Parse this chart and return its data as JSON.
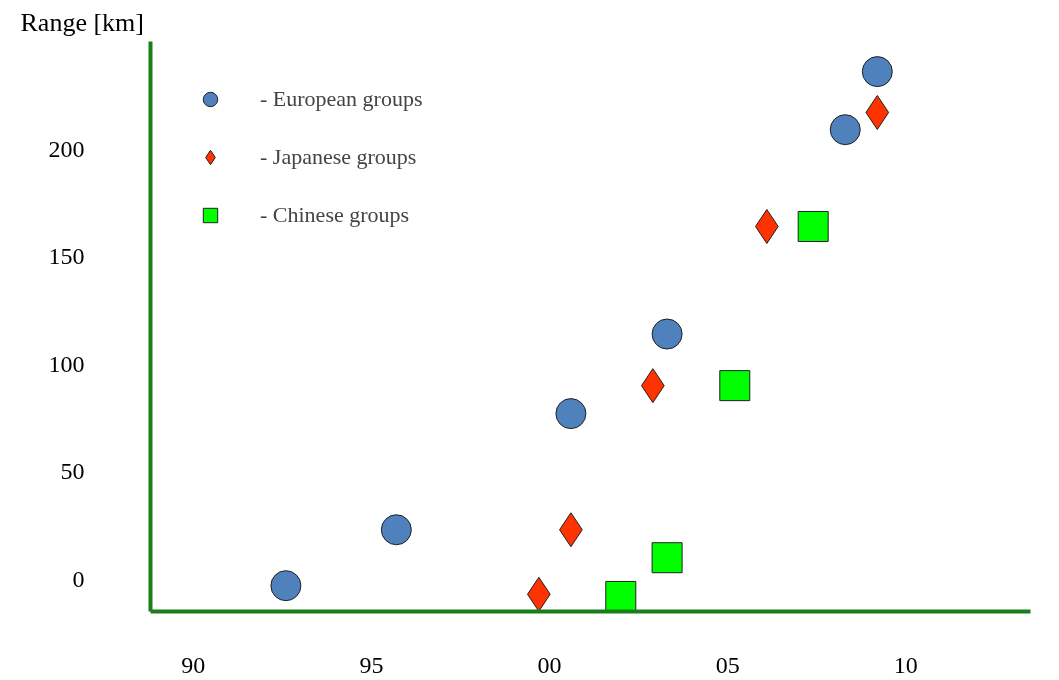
{
  "chart_data": {
    "type": "scatter",
    "ylabel": "Range [km]",
    "xlim": [
      1988.8,
      2013.5
    ],
    "ylim": [
      -15,
      250
    ],
    "xticks": [
      {
        "value": 1990,
        "label": "90"
      },
      {
        "value": 1995,
        "label": "95"
      },
      {
        "value": 2000,
        "label": "00"
      },
      {
        "value": 2005,
        "label": "05"
      },
      {
        "value": 2010,
        "label": "10"
      }
    ],
    "yticks": [
      0,
      50,
      100,
      150,
      200
    ],
    "grid": false,
    "legend": "top left",
    "series": [
      {
        "name": "- European groups",
        "color": "#4f81bd",
        "marker": "circle",
        "x": [
          1992.6,
          1995.7,
          2000.6,
          2003.3,
          2008.3,
          2009.2
        ],
        "values": [
          -3,
          23,
          77,
          114,
          209,
          236
        ]
      },
      {
        "name": "- Japanese groups",
        "color": "#ff3300",
        "marker": "diamond",
        "x": [
          1999.7,
          2000.6,
          2002.9,
          2006.1,
          2009.2
        ],
        "values": [
          -7,
          23,
          90,
          164,
          217
        ]
      },
      {
        "name": "- Chinese groups",
        "color": "#00ff00",
        "marker": "square",
        "x": [
          2002.0,
          2003.3,
          2005.2,
          2007.4
        ],
        "values": [
          -8,
          10,
          90,
          164
        ]
      }
    ]
  }
}
